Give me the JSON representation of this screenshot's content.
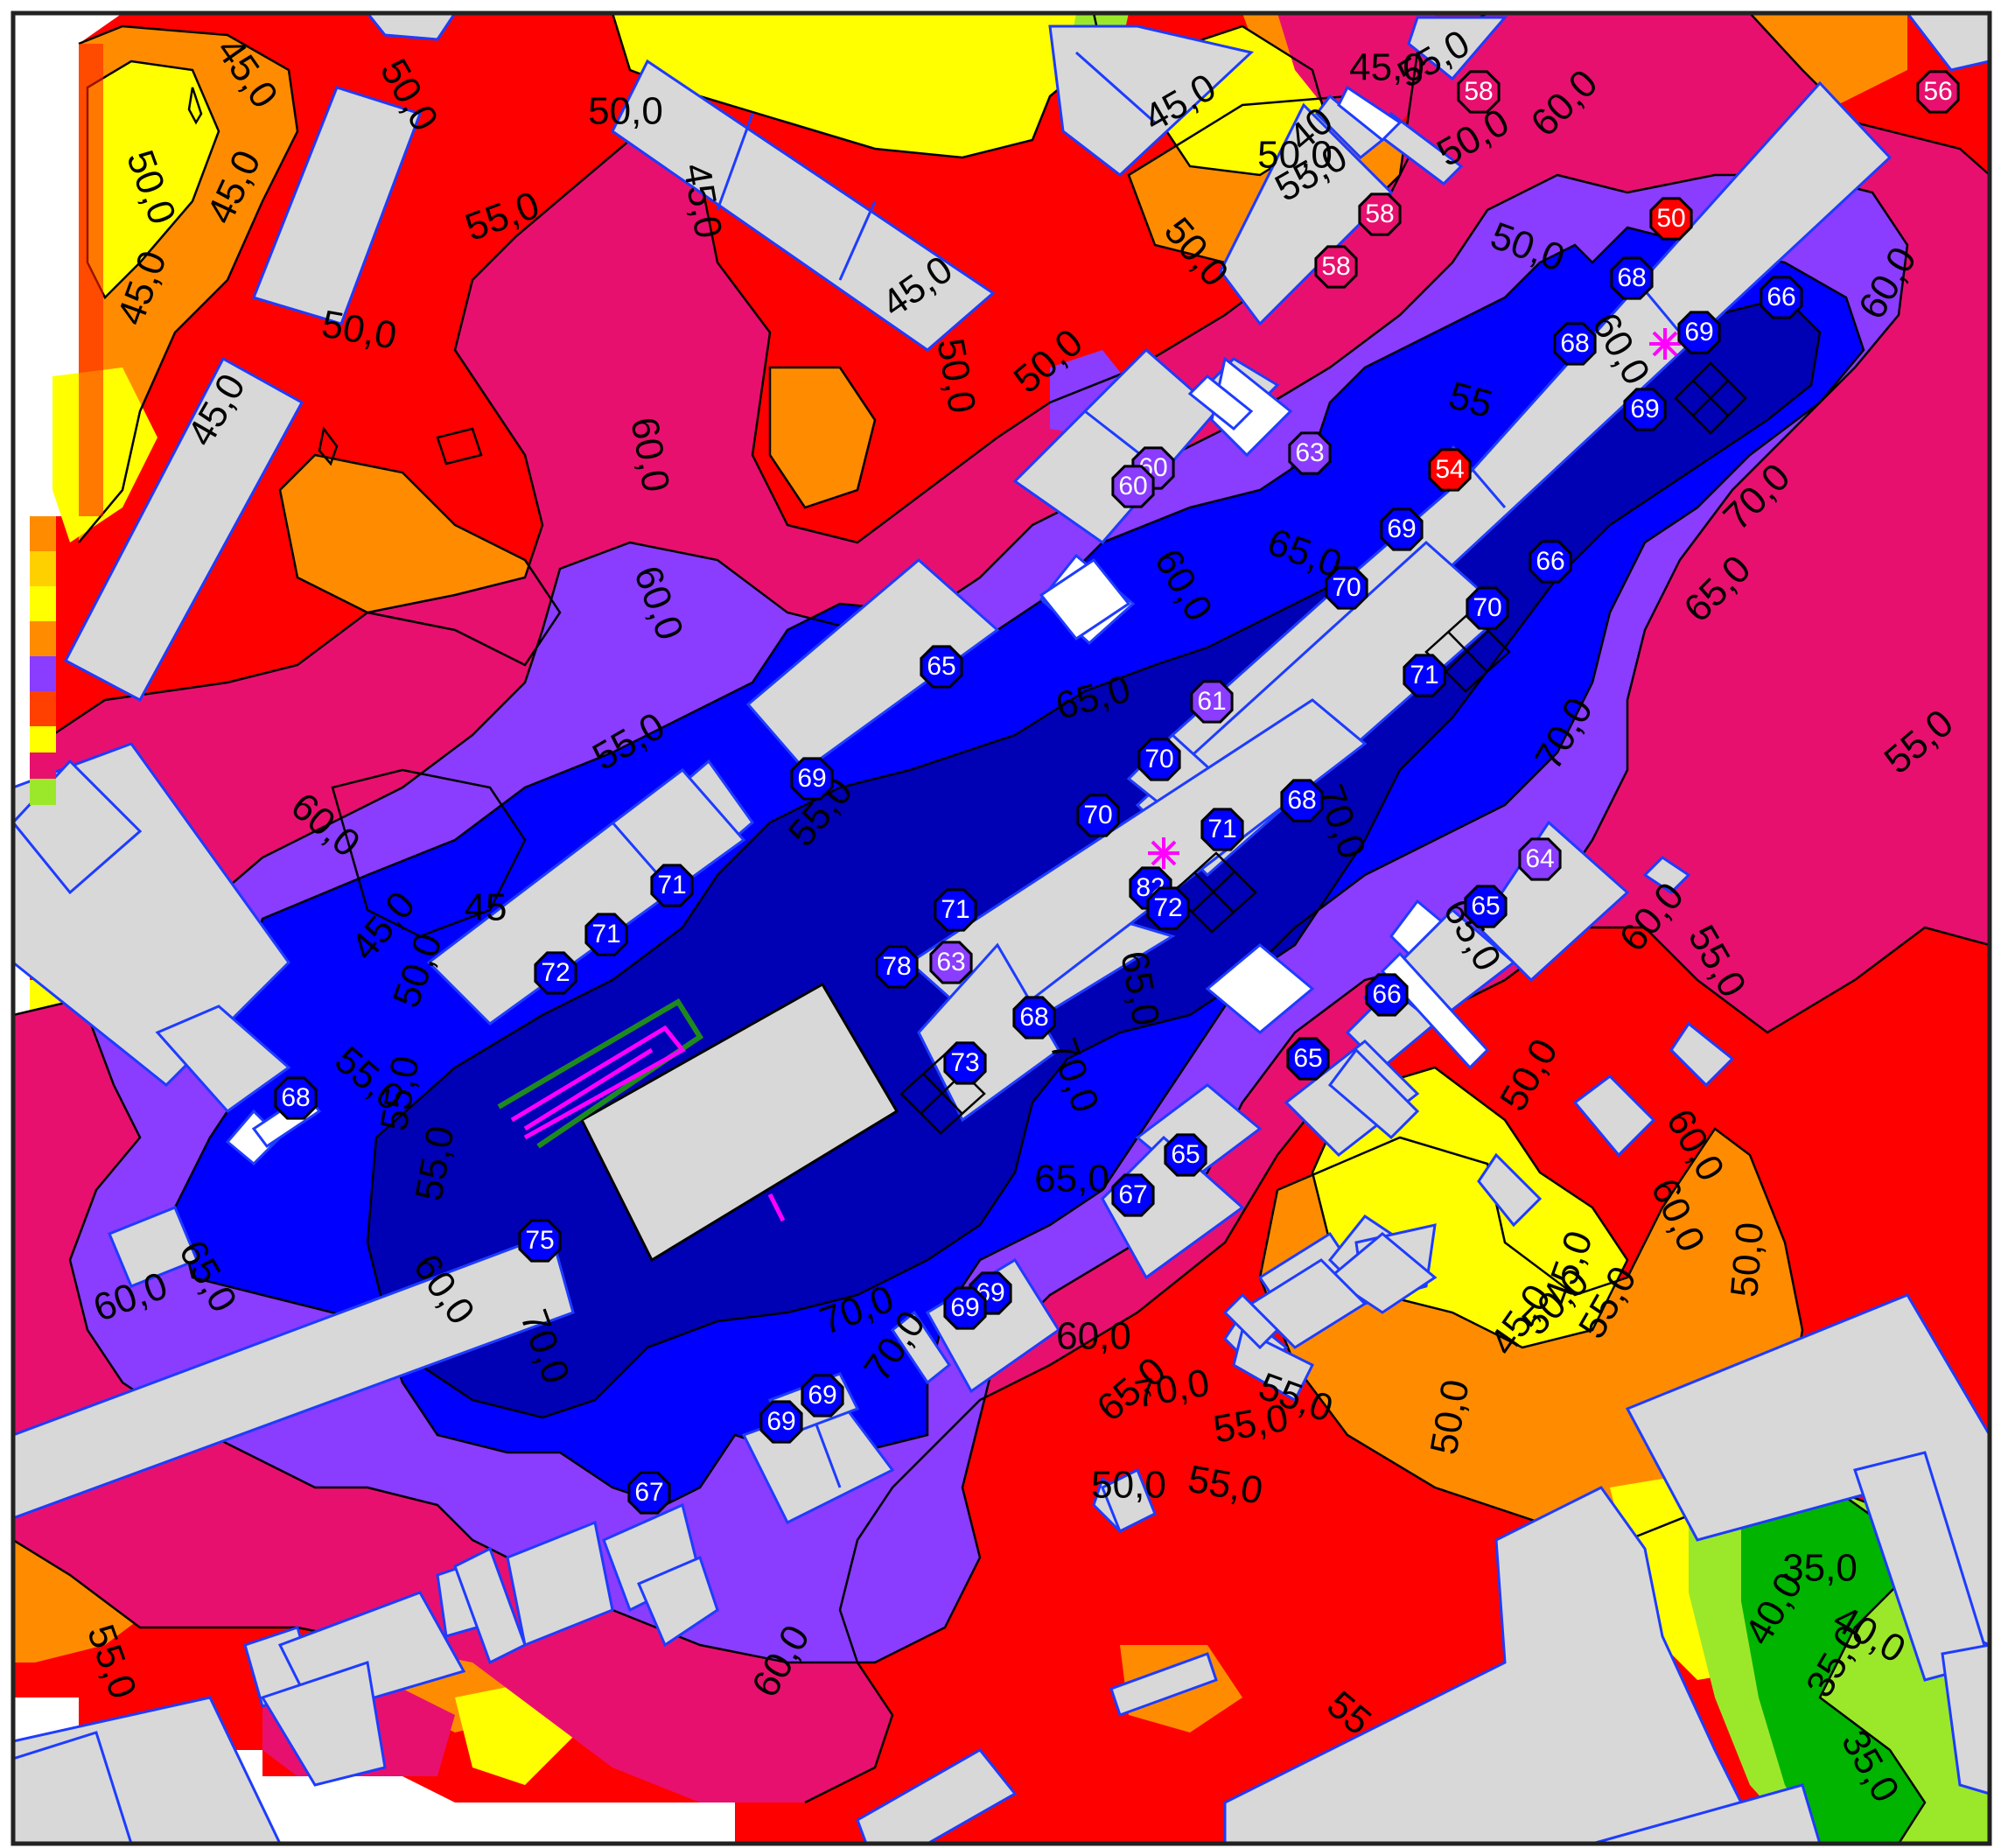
{
  "map": {
    "colors": {
      "35": "#00b400",
      "40": "#9be82a",
      "45": "#ffff00",
      "50": "#ff8c00",
      "55": "#ff0000",
      "60": "#e8106e",
      "65": "#8a3cff",
      "70": "#0000ff",
      "75": "#0000b4",
      "building": "#d8d8d8",
      "building_edge": "#1e3cff",
      "frame": "#222222",
      "source_marker": "#ff00ff",
      "contour": "#000000"
    },
    "contour_labels": [
      "45,0",
      "50,0",
      "45,0",
      "50,0",
      "45,0",
      "45,0",
      "50,0",
      "55,0",
      "50,0",
      "45,0",
      "45,0",
      "50,0",
      "45,0",
      "50,0",
      "50,0",
      "55,0",
      "55,0",
      "50,0",
      "50,0",
      "45,0",
      "40",
      "50,0",
      "45,0",
      "50,0",
      "55,0",
      "60,0",
      "60,0",
      "55",
      "60,0",
      "60,0",
      "65,0",
      "60,0",
      "55,0",
      "65,0",
      "60,0",
      "55,0",
      "55,0",
      "60,0",
      "50,0",
      "55,0",
      "70,0",
      "70,0",
      "65,0",
      "70,0",
      "70,0",
      "65,0",
      "70,0",
      "60,0",
      "55,0",
      "60,0",
      "65,0",
      "60,0",
      "65,0",
      "70,0",
      "70,0",
      "60,0",
      "55,0",
      "65,0",
      "55,0",
      "55,0",
      "60,0",
      "60,0",
      "55,0",
      "50,0",
      "55,0",
      "50,0",
      "45,0",
      "45,0",
      "50,0",
      "35,0",
      "40,0",
      "40,0",
      "35,0",
      "35,0",
      "60,0",
      "70,0",
      "50,0",
      "55",
      "55,0",
      "65,0",
      "45"
    ],
    "receivers": [
      {
        "value": "58",
        "level": "60"
      },
      {
        "value": "56",
        "level": "60"
      },
      {
        "value": "58",
        "level": "60"
      },
      {
        "value": "58",
        "level": "60"
      },
      {
        "value": "50",
        "level": "55"
      },
      {
        "value": "68",
        "level": "70"
      },
      {
        "value": "69",
        "level": "70"
      },
      {
        "value": "66",
        "level": "70"
      },
      {
        "value": "68",
        "level": "70"
      },
      {
        "value": "69",
        "level": "70"
      },
      {
        "value": "60",
        "level": "65"
      },
      {
        "value": "60",
        "level": "65"
      },
      {
        "value": "63",
        "level": "65"
      },
      {
        "value": "54",
        "level": "55"
      },
      {
        "value": "69",
        "level": "70"
      },
      {
        "value": "66",
        "level": "70"
      },
      {
        "value": "70",
        "level": "70"
      },
      {
        "value": "70",
        "level": "70"
      },
      {
        "value": "71",
        "level": "70"
      },
      {
        "value": "65",
        "level": "70"
      },
      {
        "value": "61",
        "level": "65"
      },
      {
        "value": "69",
        "level": "70"
      },
      {
        "value": "70",
        "level": "70"
      },
      {
        "value": "70",
        "level": "70"
      },
      {
        "value": "71",
        "level": "70"
      },
      {
        "value": "68",
        "level": "70"
      },
      {
        "value": "82",
        "level": "70"
      },
      {
        "value": "72",
        "level": "70"
      },
      {
        "value": "71",
        "level": "70"
      },
      {
        "value": "71",
        "level": "70"
      },
      {
        "value": "71",
        "level": "70"
      },
      {
        "value": "72",
        "level": "70"
      },
      {
        "value": "78",
        "level": "70"
      },
      {
        "value": "63",
        "level": "65"
      },
      {
        "value": "64",
        "level": "65"
      },
      {
        "value": "65",
        "level": "70"
      },
      {
        "value": "66",
        "level": "70"
      },
      {
        "value": "68",
        "level": "70"
      },
      {
        "value": "73",
        "level": "70"
      },
      {
        "value": "65",
        "level": "70"
      },
      {
        "value": "68",
        "level": "70"
      },
      {
        "value": "65",
        "level": "70"
      },
      {
        "value": "67",
        "level": "70"
      },
      {
        "value": "75",
        "level": "70"
      },
      {
        "value": "69",
        "level": "70"
      },
      {
        "value": "69",
        "level": "70"
      },
      {
        "value": "69",
        "level": "70"
      },
      {
        "value": "69",
        "level": "70"
      },
      {
        "value": "67",
        "level": "70"
      }
    ]
  }
}
